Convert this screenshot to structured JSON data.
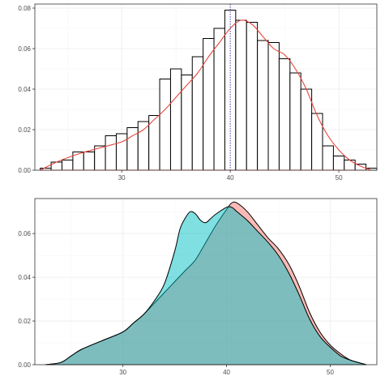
{
  "chart_data": [
    {
      "type": "histogram",
      "title": "",
      "xlabel": "",
      "ylabel": "",
      "xlim": [
        22,
        53.5
      ],
      "ylim": [
        0,
        0.082
      ],
      "x_ticks": [
        30,
        40,
        50
      ],
      "y_ticks": [
        0,
        0.02,
        0.04,
        0.06,
        0.08
      ],
      "x_tick_labels": [
        "30",
        "40",
        "50"
      ],
      "y_tick_labels": [
        "0.00",
        "0.02",
        "0.04",
        "0.06",
        "0.08"
      ],
      "grid": true,
      "bin_width": 1,
      "bins_start": [
        22.5,
        23.5,
        24.5,
        25.5,
        26.5,
        27.5,
        28.5,
        29.5,
        30.5,
        31.5,
        32.5,
        33.5,
        34.5,
        35.5,
        36.5,
        37.5,
        38.5,
        39.5,
        40.5,
        41.5,
        42.5,
        43.5,
        44.5,
        45.5,
        46.5,
        47.5,
        48.5,
        49.5,
        50.5,
        51.5,
        52.5
      ],
      "values": [
        0.001,
        0.004,
        0.005,
        0.009,
        0.009,
        0.012,
        0.017,
        0.018,
        0.021,
        0.024,
        0.027,
        0.045,
        0.05,
        0.047,
        0.056,
        0.065,
        0.07,
        0.079,
        0.074,
        0.073,
        0.064,
        0.063,
        0.055,
        0.048,
        0.04,
        0.028,
        0.012,
        0.007,
        0.005,
        0.003,
        0.001
      ],
      "density_curve": {
        "color": "#e8453c",
        "x": [
          22.5,
          24,
          26,
          28,
          30,
          31,
          32,
          33,
          34,
          35,
          36,
          37,
          38,
          39,
          40,
          41,
          42,
          43,
          44,
          45,
          46,
          47,
          48,
          49,
          50,
          51,
          52,
          53
        ],
        "y": [
          0.0,
          0.004,
          0.008,
          0.011,
          0.014,
          0.017,
          0.02,
          0.025,
          0.03,
          0.036,
          0.042,
          0.048,
          0.056,
          0.063,
          0.07,
          0.074,
          0.072,
          0.066,
          0.06,
          0.057,
          0.05,
          0.04,
          0.027,
          0.017,
          0.01,
          0.005,
          0.002,
          0.0
        ]
      },
      "vline": {
        "x": 40,
        "color": "#4444aa",
        "style": "dotted"
      }
    },
    {
      "type": "area",
      "title": "",
      "xlabel": "",
      "ylabel": "",
      "xlim": [
        21.5,
        54.5
      ],
      "ylim": [
        0,
        0.076
      ],
      "x_ticks": [
        30,
        40,
        50
      ],
      "y_ticks": [
        0,
        0.02,
        0.04,
        0.06
      ],
      "x_tick_labels": [
        "30",
        "40",
        "50"
      ],
      "y_tick_labels": [
        "0.00",
        "0.02",
        "0.04",
        "0.06"
      ],
      "grid": true,
      "series": [
        {
          "color": "#f8766d",
          "x": [
            22.5,
            24,
            25,
            26,
            28,
            30,
            31,
            32,
            33,
            34,
            35,
            36,
            37,
            38,
            39,
            40,
            40.5,
            41,
            42,
            43,
            44,
            45,
            46,
            47,
            48,
            49,
            50,
            51,
            52,
            53.5
          ],
          "y": [
            0.0,
            0.001,
            0.004,
            0.007,
            0.011,
            0.015,
            0.019,
            0.023,
            0.028,
            0.033,
            0.038,
            0.043,
            0.048,
            0.056,
            0.064,
            0.071,
            0.074,
            0.074,
            0.07,
            0.064,
            0.058,
            0.053,
            0.046,
            0.036,
            0.024,
            0.015,
            0.009,
            0.005,
            0.002,
            0.0
          ]
        },
        {
          "color": "#00bfc4",
          "x": [
            22.5,
            24,
            25,
            26,
            28,
            30,
            31,
            32,
            33,
            34,
            35,
            35.5,
            36,
            36.5,
            37,
            37.5,
            38,
            38.5,
            39,
            40,
            40.5,
            41,
            42,
            43,
            44,
            45,
            46,
            47,
            48,
            49,
            50,
            51,
            52,
            53.5
          ],
          "y": [
            0.0,
            0.001,
            0.004,
            0.007,
            0.011,
            0.015,
            0.019,
            0.023,
            0.029,
            0.037,
            0.052,
            0.062,
            0.067,
            0.07,
            0.069,
            0.066,
            0.065,
            0.067,
            0.069,
            0.072,
            0.072,
            0.07,
            0.066,
            0.061,
            0.056,
            0.05,
            0.042,
            0.032,
            0.021,
            0.013,
            0.008,
            0.004,
            0.002,
            0.0
          ]
        }
      ]
    }
  ]
}
